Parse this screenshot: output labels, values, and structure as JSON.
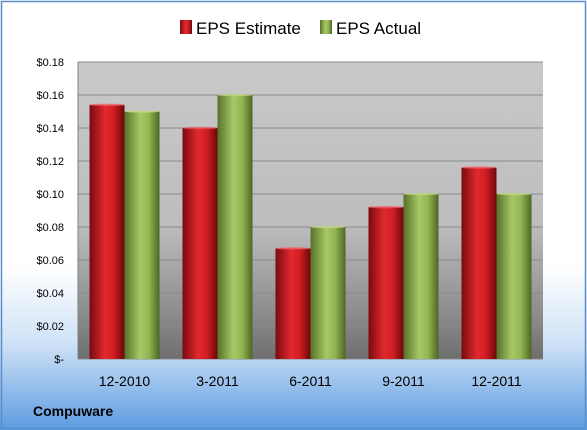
{
  "company": "Compuware",
  "chart_data": {
    "type": "bar",
    "categories": [
      "12-2010",
      "3-2011",
      "6-2011",
      "9-2011",
      "12-2011"
    ],
    "series": [
      {
        "name": "EPS Estimate",
        "color": "#c0141c",
        "values": [
          0.154,
          0.14,
          0.067,
          0.092,
          0.116
        ]
      },
      {
        "name": "EPS Actual",
        "color": "#8cb04a",
        "values": [
          0.15,
          0.16,
          0.08,
          0.1,
          0.1
        ]
      }
    ],
    "yticks": [
      0,
      0.02,
      0.04,
      0.06,
      0.08,
      0.1,
      0.12,
      0.14,
      0.16,
      0.18
    ],
    "ytick_labels": [
      "$-",
      "$0.02",
      "$0.04",
      "$0.06",
      "$0.08",
      "$0.10",
      "$0.12",
      "$0.14",
      "$0.16",
      "$0.18"
    ],
    "ylim": [
      0,
      0.18
    ],
    "grid": true,
    "legend_position": "top-center"
  }
}
